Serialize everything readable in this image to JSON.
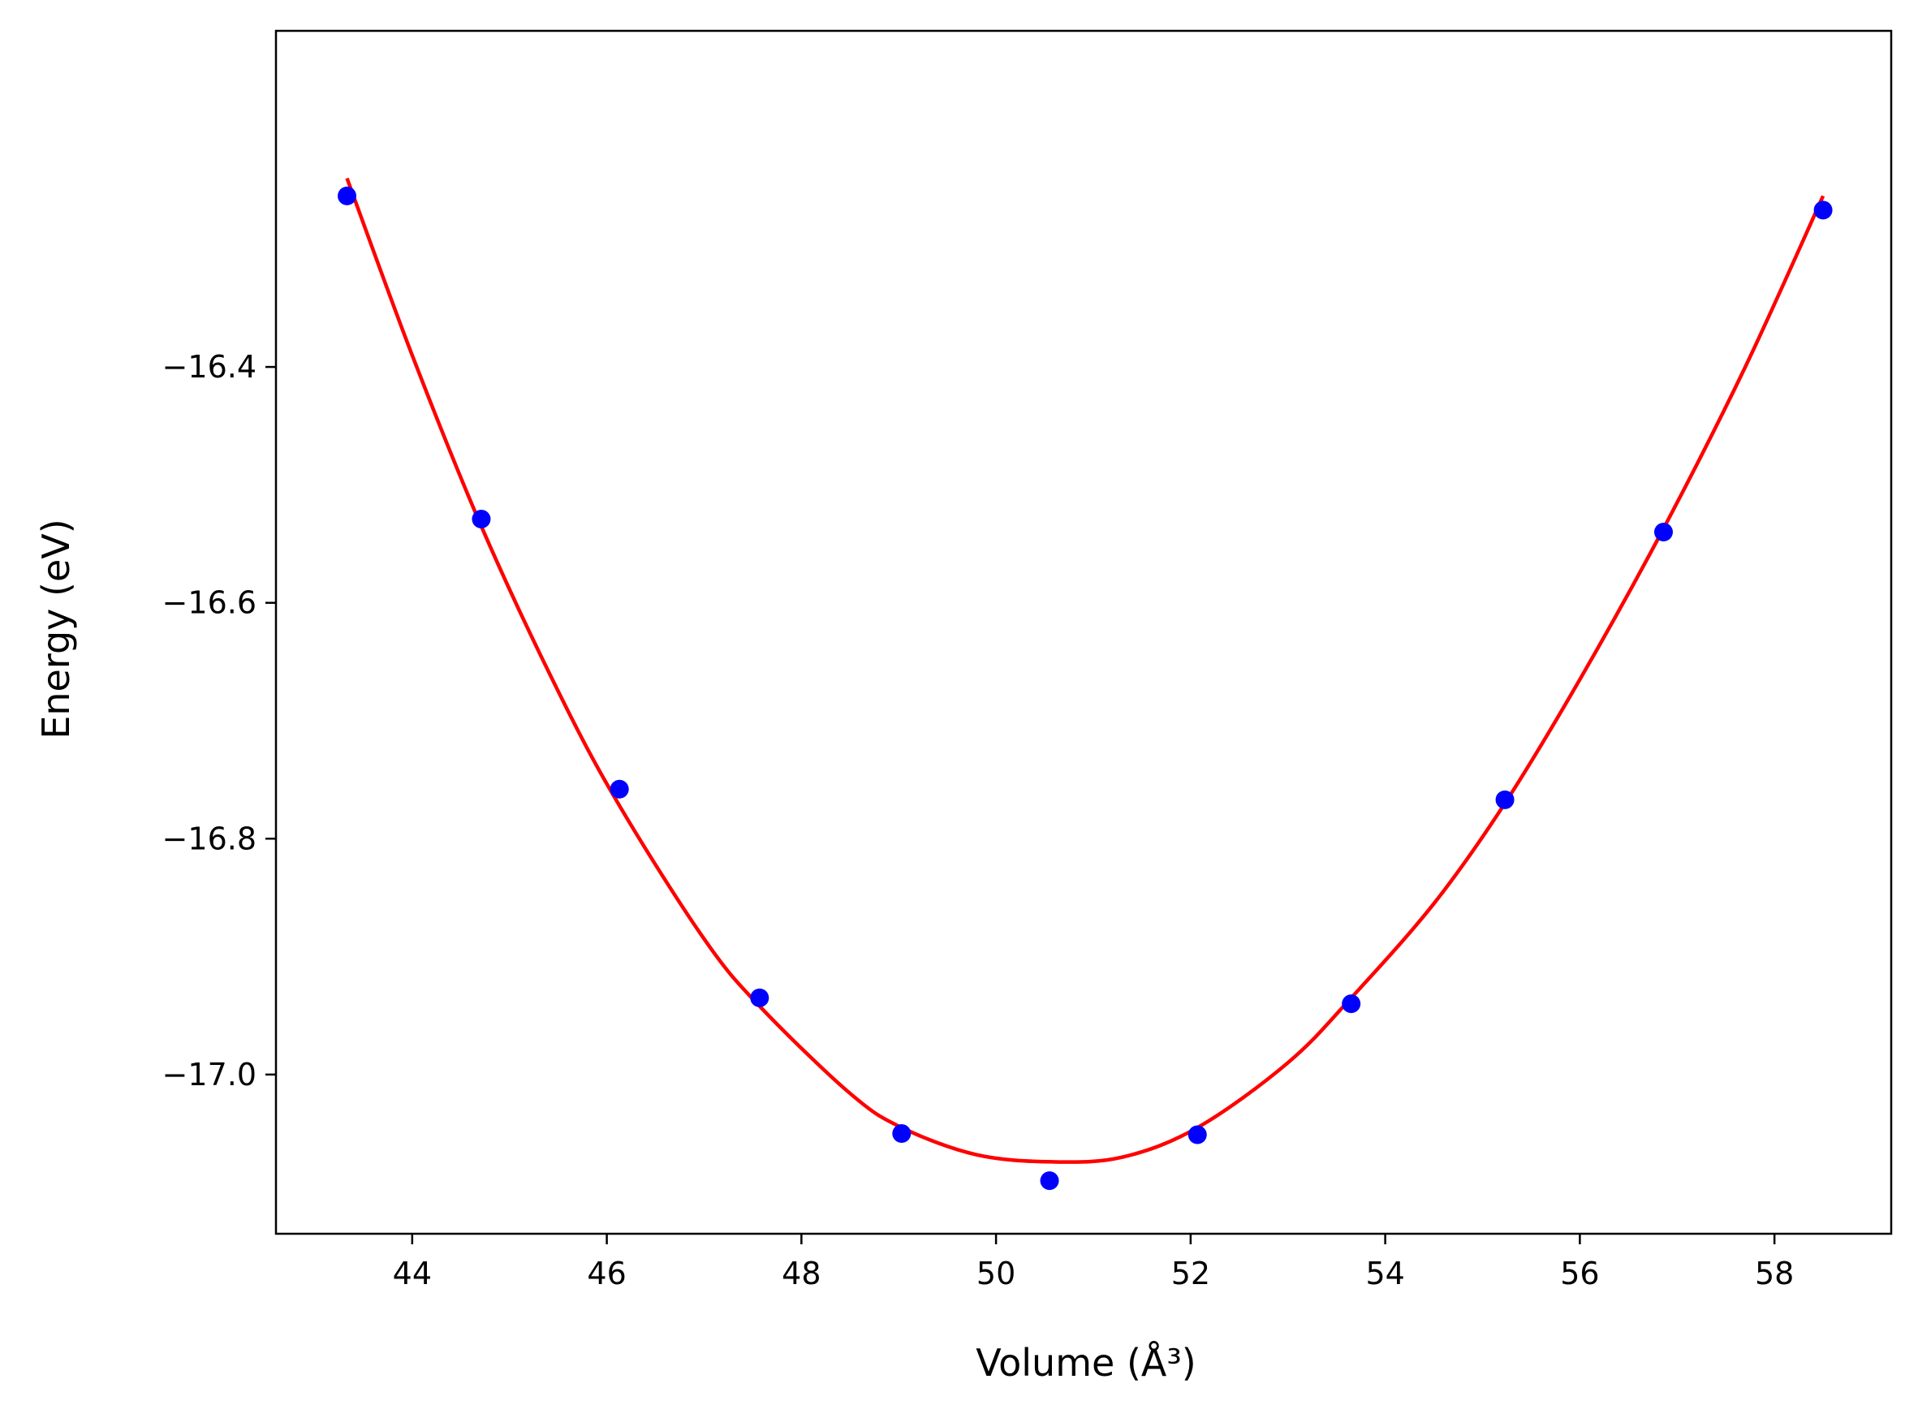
{
  "chart_data": {
    "type": "scatter",
    "xlabel": "Volume (Å³)",
    "ylabel": "Energy (eV)",
    "xlim": [
      42.6,
      59.2
    ],
    "ylim": [
      -17.135,
      -16.115
    ],
    "x_ticks": [
      44,
      46,
      48,
      50,
      52,
      54,
      56,
      58
    ],
    "y_ticks": [
      -16.4,
      -16.6,
      -16.8,
      -17.0
    ],
    "x_tick_labels": [
      "44",
      "46",
      "48",
      "50",
      "52",
      "54",
      "56",
      "58"
    ],
    "y_tick_labels": [
      "−16.4",
      "−16.6",
      "−16.8",
      "−17.0"
    ],
    "grid": false,
    "series": [
      {
        "kind": "points",
        "color": "#0000ff",
        "x": [
          43.33,
          44.71,
          46.13,
          47.57,
          49.03,
          50.55,
          52.07,
          53.65,
          55.23,
          56.86,
          58.5
        ],
        "y": [
          -16.255,
          -16.529,
          -16.758,
          -16.935,
          -17.05,
          -17.09,
          -17.051,
          -16.94,
          -16.767,
          -16.54,
          -16.267
        ]
      },
      {
        "kind": "fit-curve",
        "color": "#ff0000",
        "x": [
          43.33,
          44.0,
          44.71,
          45.5,
          46.13,
          47.0,
          47.57,
          48.5,
          49.03,
          49.8,
          50.58,
          51.3,
          52.07,
          53.0,
          53.65,
          54.5,
          55.23,
          56.0,
          56.86,
          57.7,
          58.5
        ],
        "y": [
          -16.24,
          -16.39,
          -16.535,
          -16.675,
          -16.772,
          -16.885,
          -16.942,
          -17.016,
          -17.045,
          -17.068,
          -17.074,
          -17.07,
          -17.045,
          -16.99,
          -16.935,
          -16.855,
          -16.77,
          -16.665,
          -16.537,
          -16.4,
          -16.255
        ]
      }
    ]
  }
}
